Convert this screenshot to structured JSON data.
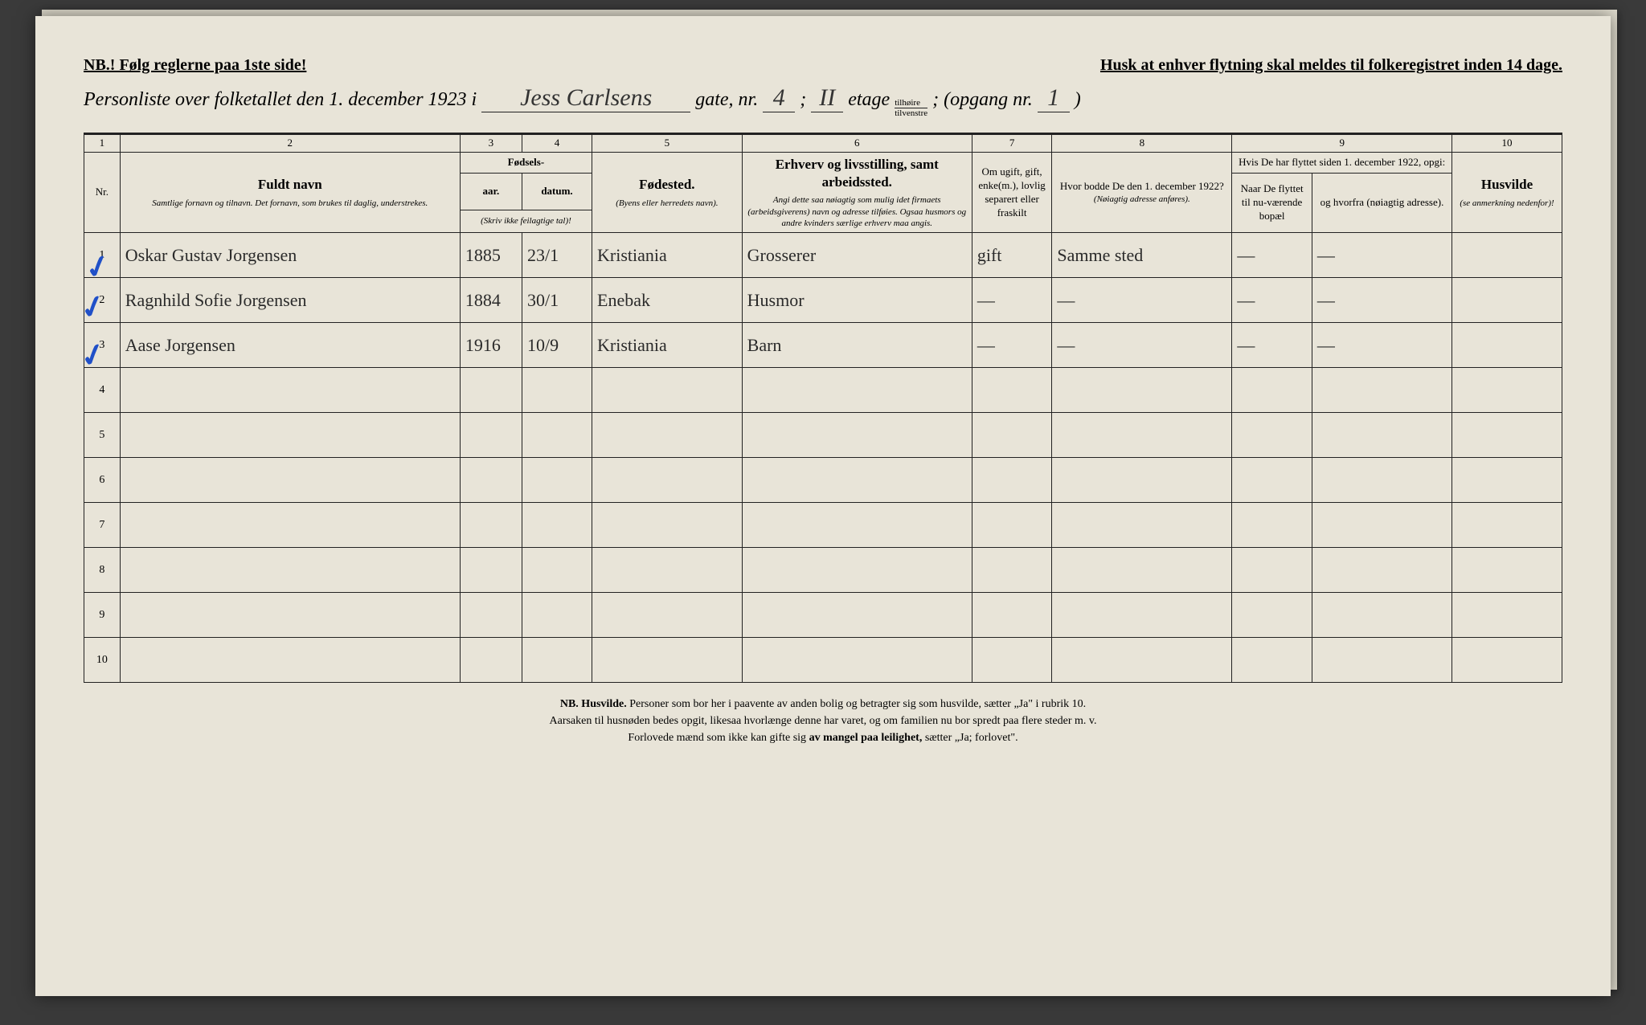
{
  "header": {
    "nb_rules": "NB.! Følg reglerne paa 1ste side!",
    "husk": "Husk at enhver flytning skal meldes til folkeregistret inden 14 dage.",
    "title_prefix": "Personliste over folketallet den 1. december 1923 i",
    "street_hand": "Jess Carlsens",
    "gate_label": "gate, nr.",
    "gate_nr": "4",
    "semicolon": ";",
    "etage_nr": "II",
    "etage_label": "etage",
    "side_top": "tilhøire",
    "side_bot": "tilvenstre",
    "opgang_label": "; (opgang nr.",
    "opgang_nr": "1",
    "opgang_close": ")"
  },
  "colnums": [
    "1",
    "2",
    "3",
    "4",
    "5",
    "6",
    "7",
    "8",
    "9",
    "10"
  ],
  "headers": {
    "nr": "Nr.",
    "name_main": "Fuldt navn",
    "name_sub": "Samtlige fornavn og tilnavn. Det fornavn, som brukes til daglig, understrekes.",
    "fodsels": "Fødsels-",
    "aar": "aar.",
    "datum": "datum.",
    "fodsels_sub": "(Skriv ikke feilagtige tal)!",
    "fodested": "Fødested.",
    "fodested_sub": "(Byens eller herredets navn).",
    "erhverv": "Erhverv og livsstilling, samt arbeidssted.",
    "erhverv_sub": "Angi dette saa nøiagtig som mulig idet firmaets (arbeidsgiverens) navn og adresse tilføies. Ogsaa husmors og andre kvinders særlige erhverv maa angis.",
    "marital": "Om ugift, gift, enke(m.), lovlig separert eller fraskilt",
    "hvor1922": "Hvor bodde De den 1. december 1922?",
    "hvor1922_sub": "(Nøiagtig adresse anføres).",
    "flyttet": "Hvis De har flyttet siden 1. december 1922, opgi:",
    "naar": "Naar De flyttet til nu-værende bopæl",
    "hvorfra": "og hvorfra (nøiagtig adresse).",
    "husvilde": "Husvilde",
    "husvilde_sub": "(se anmerkning nedenfor)!"
  },
  "rows": [
    {
      "nr": "1",
      "name": "Oskar Gustav Jorgensen",
      "aar": "1885",
      "dat": "23/1",
      "fs": "Kristiania",
      "erh": "Grosserer",
      "mar": "gift",
      "y1922": "Samme sted",
      "naar": "—",
      "hvor": "—",
      "husv": ""
    },
    {
      "nr": "2",
      "name": "Ragnhild Sofie Jorgensen",
      "aar": "1884",
      "dat": "30/1",
      "fs": "Enebak",
      "erh": "Husmor",
      "mar": "—",
      "y1922": "—",
      "naar": "—",
      "hvor": "—",
      "husv": ""
    },
    {
      "nr": "3",
      "name": "Aase Jorgensen",
      "aar": "1916",
      "dat": "10/9",
      "fs": "Kristiania",
      "erh": "Barn",
      "mar": "—",
      "y1922": "—",
      "naar": "—",
      "hvor": "—",
      "husv": ""
    },
    {
      "nr": "4",
      "name": "",
      "aar": "",
      "dat": "",
      "fs": "",
      "erh": "",
      "mar": "",
      "y1922": "",
      "naar": "",
      "hvor": "",
      "husv": ""
    },
    {
      "nr": "5",
      "name": "",
      "aar": "",
      "dat": "",
      "fs": "",
      "erh": "",
      "mar": "",
      "y1922": "",
      "naar": "",
      "hvor": "",
      "husv": ""
    },
    {
      "nr": "6",
      "name": "",
      "aar": "",
      "dat": "",
      "fs": "",
      "erh": "",
      "mar": "",
      "y1922": "",
      "naar": "",
      "hvor": "",
      "husv": ""
    },
    {
      "nr": "7",
      "name": "",
      "aar": "",
      "dat": "",
      "fs": "",
      "erh": "",
      "mar": "",
      "y1922": "",
      "naar": "",
      "hvor": "",
      "husv": ""
    },
    {
      "nr": "8",
      "name": "",
      "aar": "",
      "dat": "",
      "fs": "",
      "erh": "",
      "mar": "",
      "y1922": "",
      "naar": "",
      "hvor": "",
      "husv": ""
    },
    {
      "nr": "9",
      "name": "",
      "aar": "",
      "dat": "",
      "fs": "",
      "erh": "",
      "mar": "",
      "y1922": "",
      "naar": "",
      "hvor": "",
      "husv": ""
    },
    {
      "nr": "10",
      "name": "",
      "aar": "",
      "dat": "",
      "fs": "",
      "erh": "",
      "mar": "",
      "y1922": "",
      "naar": "",
      "hvor": "",
      "husv": ""
    }
  ],
  "footnote": {
    "line1a": "NB.  Husvilde.",
    "line1b": "  Personer som bor her i paavente av anden bolig og betragter sig som husvilde, sætter „Ja\" i rubrik 10.",
    "line2": "Aarsaken til husnøden bedes opgit, likesaa hvorlænge denne har varet, og om familien nu bor spredt paa flere steder m. v.",
    "line3a": "Forlovede mænd som ikke kan gifte sig ",
    "line3b": "av mangel paa leilighet,",
    "line3c": " sætter „Ja; forlovet\"."
  },
  "style": {
    "paper_bg": "#e8e4d8",
    "ink": "#222222",
    "blue_pencil": "#2050c8",
    "hand_color": "#2a2a2a"
  }
}
